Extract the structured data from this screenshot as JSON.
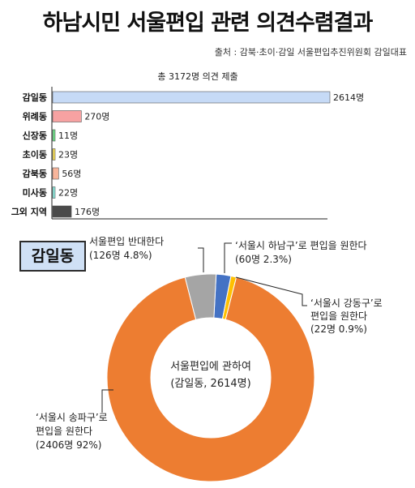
{
  "header": {
    "title": "하남시민 서울편입 관련 의견수렴결과",
    "source": "출처 : 감북·초이·감일 서울편입추진위원회 감일대표"
  },
  "chart_data": [
    {
      "type": "bar",
      "orientation": "horizontal",
      "title": "총 3172명 의견 제출",
      "categories": [
        "감일동",
        "위례동",
        "신장동",
        "초이동",
        "감북동",
        "미사동",
        "그외 지역"
      ],
      "values": [
        2614,
        270,
        11,
        23,
        56,
        22,
        176
      ],
      "value_labels": [
        "2614명",
        "270명",
        "11명",
        "23명",
        "56명",
        "22명",
        "176명"
      ],
      "colors": [
        "#c6daf6",
        "#f7a2a2",
        "#6fe08a",
        "#f6dd5a",
        "#f8b59b",
        "#8ee8dc",
        "#4a4a4a"
      ],
      "xlim": [
        0,
        2614
      ],
      "grid": false
    },
    {
      "type": "pie",
      "badge": "감일동",
      "center_label": [
        "서울편입에 관하여",
        "(감일동, 2614명)"
      ],
      "slices": [
        {
          "value": 60,
          "percent": 2.3,
          "color": "#4472c4",
          "label": [
            "‘서울시 하남구’로 편입을 원한다",
            "(60명 2.3%)"
          ]
        },
        {
          "value": 22,
          "percent": 0.9,
          "color": "#ffc000",
          "label": [
            "‘서울시 강동구’로",
            "편입을 원한다",
            "(22명 0.9%)"
          ]
        },
        {
          "value": 2406,
          "percent": 92,
          "color": "#ed7d31",
          "label": [
            "‘서울시 송파구’로",
            "편입을 원한다",
            "(2406명 92%)"
          ]
        },
        {
          "value": 126,
          "percent": 4.8,
          "color": "#a5a5a5",
          "label": [
            "서울편입 반대한다",
            "(126명 4.8%)"
          ]
        }
      ]
    }
  ]
}
